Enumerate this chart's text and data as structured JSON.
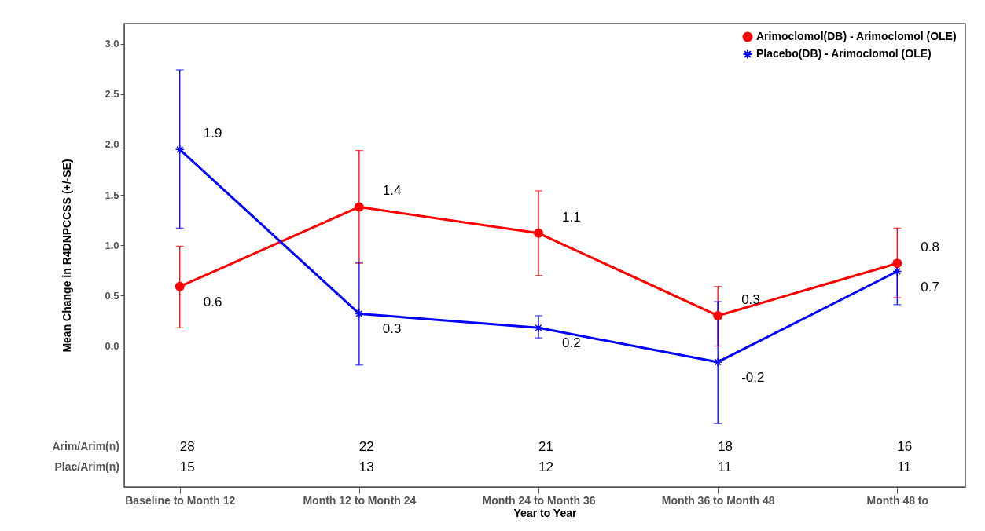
{
  "chart_data": {
    "type": "line",
    "xlabel": "Year to Year",
    "ylabel": "Mean Change in R4DNPCCSS (+/-SE)",
    "categories": [
      "Baseline to Month 12",
      "Month 12 to Month 24",
      "Month 24 to Month 36",
      "Month 36 to Month 48",
      "Month 48 to"
    ],
    "series": [
      {
        "name": "Arimoclomol(DB) - Arimoclomol (OLE)",
        "color": "#ff0000",
        "marker": "circle",
        "values": [
          0.59,
          1.38,
          1.12,
          0.3,
          0.82
        ],
        "errors": [
          [
            0.18,
            0.99
          ],
          [
            0.82,
            1.94
          ],
          [
            0.7,
            1.54
          ],
          [
            0.0,
            0.59
          ],
          [
            0.48,
            1.17
          ]
        ],
        "value_labels": [
          "0.6",
          "1.4",
          "1.1",
          "0.3",
          "0.8"
        ]
      },
      {
        "name": "Placebo(DB) - Arimoclomol (OLE)",
        "color": "#0000ff",
        "marker": "cross",
        "values": [
          1.95,
          0.32,
          0.18,
          -0.16,
          0.74
        ],
        "errors": [
          [
            1.17,
            2.74
          ],
          [
            -0.19,
            0.83
          ],
          [
            0.08,
            0.3
          ],
          [
            -0.77,
            0.44
          ],
          [
            0.41,
            0.85
          ]
        ],
        "value_labels": [
          "1.9",
          "0.3",
          "0.2",
          "-0.2",
          "0.7"
        ]
      }
    ],
    "ylim": [
      -1.4,
      3.2
    ],
    "yticks": [
      {
        "value": 0,
        "label": "0.0"
      },
      0.5,
      {
        "value": 1,
        "label": "1.0"
      },
      1.5,
      {
        "value": 2,
        "label": "2.0"
      },
      2.5,
      {
        "value": 3,
        "label": "3.0"
      }
    ],
    "grid": false,
    "legend": "top right",
    "annotations": [
      "Arim/Arim(n)",
      "28",
      "22",
      "21",
      "18",
      "16",
      "Plac/Arim(n)",
      "15",
      "13",
      "12",
      "11",
      "11"
    ]
  }
}
